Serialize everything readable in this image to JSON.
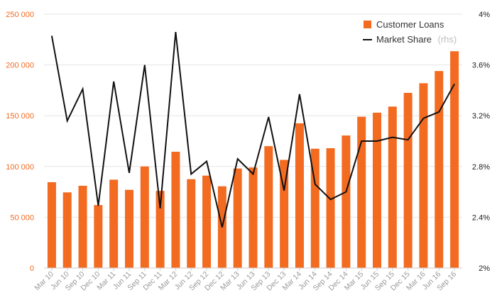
{
  "chart_data": {
    "type": "bar",
    "categories": [
      "Mar 10",
      "Jun 10",
      "Sep 10",
      "Dec 10",
      "Mar 11",
      "Jun 11",
      "Sep 11",
      "Dec 11",
      "Mar 12",
      "Jun 12",
      "Sep 12",
      "Dec 12",
      "Mar 13",
      "Jun 13",
      "Sep 13",
      "Dec 13",
      "Mar 14",
      "Jun 14",
      "Sep 14",
      "Dec 14",
      "Mar 15",
      "Jun 15",
      "Sep 15",
      "Dec 15",
      "Mar 16",
      "Jun 16",
      "Sep 16"
    ],
    "series": [
      {
        "name": "Customer Loans",
        "type": "bar",
        "axis": "left",
        "color": "#f26b21",
        "values": [
          84500,
          74500,
          81000,
          62000,
          87000,
          77000,
          100000,
          76000,
          114500,
          87500,
          91000,
          80500,
          98000,
          99000,
          120000,
          106500,
          142500,
          117500,
          118000,
          130500,
          149000,
          153000,
          159000,
          172500,
          182000,
          194000,
          213500
        ]
      },
      {
        "name": "Market Share",
        "name_suffix": "(rhs)",
        "type": "line",
        "axis": "right",
        "color": "#111111",
        "values": [
          3.83,
          3.16,
          3.41,
          2.49,
          3.47,
          2.75,
          3.6,
          2.47,
          3.86,
          2.74,
          2.84,
          2.32,
          2.86,
          2.74,
          3.19,
          2.61,
          3.37,
          2.66,
          2.54,
          2.6,
          3.0,
          3.0,
          3.03,
          3.01,
          3.18,
          3.23,
          3.45
        ]
      }
    ],
    "y_left": {
      "ylim": [
        0,
        250000
      ],
      "ticks": [
        0,
        50000,
        100000,
        150000,
        200000,
        250000
      ],
      "tick_labels": [
        "0",
        "50 000",
        "100 000",
        "150 000",
        "200 000",
        "250 000"
      ]
    },
    "y_right": {
      "ylim": [
        2.0,
        4.0
      ],
      "ticks": [
        2.0,
        2.4,
        2.8,
        3.2,
        3.6,
        4.0
      ],
      "tick_labels": [
        "2%",
        "2.4%",
        "2.8%",
        "3.2%",
        "3.6%",
        "4%"
      ]
    },
    "grid": true,
    "legend_position": "top-right",
    "title": "",
    "xlabel": "",
    "ylabel": ""
  }
}
